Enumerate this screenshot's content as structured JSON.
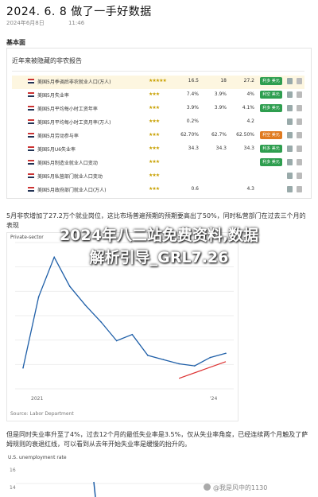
{
  "header": {
    "title": "2024. 6. 8  做了一手好数据",
    "date": "2024年6月8日",
    "time": "11:46"
  },
  "section_head": "基本面",
  "table": {
    "title": "近年来被隐藏的非农报告",
    "rows": [
      {
        "name": "美国5月季调后非农就业人口(万人)",
        "stars": "★★★★★",
        "v1": "16.5",
        "v2": "18",
        "v3": "27.2",
        "badge": "利多 美元",
        "badge_color": "#2e9e4f"
      },
      {
        "name": "美国5月失业率",
        "stars": "★★★",
        "v1": "7.4%",
        "v2": "3.9%",
        "v3": "4%",
        "badge": "利空 美元",
        "badge_color": "#2e9e4f"
      },
      {
        "name": "美国5月平均每小时工资年率",
        "stars": "★★★",
        "v1": "3.9%",
        "v2": "3.9%",
        "v3": "4.1%",
        "badge": "利多 美元",
        "badge_color": "#2e9e4f"
      },
      {
        "name": "美国5月平均每小时工资月率(万人)",
        "stars": "★★★",
        "v1": "0.2%",
        "v2": "",
        "v3": "4.2",
        "badge": "",
        "badge_color": "#ffffff"
      },
      {
        "name": "美国5月劳动参与率",
        "stars": "★★★",
        "v1": "62.70%",
        "v2": "62.7%",
        "v3": "62.50%",
        "badge": "利空 美元",
        "badge_color": "#e07b20"
      },
      {
        "name": "美国5月U6失业率",
        "stars": "★★★",
        "v1": "34.3",
        "v2": "34.3",
        "v3": "34.3",
        "badge": "利多 美元",
        "badge_color": "#2e9e4f"
      },
      {
        "name": "美国5月制造业就业人口变动",
        "stars": "★★★",
        "v1": "",
        "v2": "",
        "v3": "",
        "badge": "利多 美元",
        "badge_color": "#2e9e4f"
      },
      {
        "name": "美国5月私营部门就业人口变动",
        "stars": "★★★",
        "v1": "",
        "v2": "",
        "v3": "",
        "badge": "",
        "badge_color": "#ffffff"
      },
      {
        "name": "美国5月政府部门就业人口(万人)",
        "stars": "★★★",
        "v1": "0.6",
        "v2": "",
        "v3": "4.3",
        "badge": "",
        "badge_color": "#ffffff"
      }
    ]
  },
  "body_text_1": "5月非农增加了27.2万个就业岗位，这比市场普遍预期的预期要高出了50%，同时私营部门在过去三个月的表现",
  "overlay": {
    "line1": "2024年八二站免费资料,数据",
    "line2": "解析引导_GRL7.26"
  },
  "chart1": {
    "label": "Private-sector",
    "source": "Source: Labor Department",
    "x_ticks": [
      "2021",
      "'24"
    ]
  },
  "chart_data": {
    "type": "line",
    "x": [
      "2021-01",
      "2021-04",
      "2021-07",
      "2021-10",
      "2022-01",
      "2022-04",
      "2022-07",
      "2022-10",
      "2023-01",
      "2023-04",
      "2023-07",
      "2023-10",
      "2024-01",
      "2024-04"
    ],
    "series": [
      {
        "values": [
          2.0,
          5.4,
          7.3,
          5.9,
          5.0,
          4.2,
          3.3,
          3.6,
          2.6,
          2.4,
          2.2,
          2.1,
          2.5,
          2.7
        ]
      }
    ]
  },
  "body_text_2": "但是同时失业率升至了4%，过去12个月的最低失业率是3.5%，仅从失业率角度，已经连续两个月触及了萨姆规则的衰退红线，可以看到从去年开始失业率是缓慢的抬升的。",
  "chart2": {
    "label": "U.S. unemployment rate",
    "y_ticks": [
      "16",
      "14"
    ]
  },
  "watermark": "@我是风中的1130",
  "colors": {
    "accent_line": "#1f5fa8",
    "trend_arrow": "#d33"
  }
}
